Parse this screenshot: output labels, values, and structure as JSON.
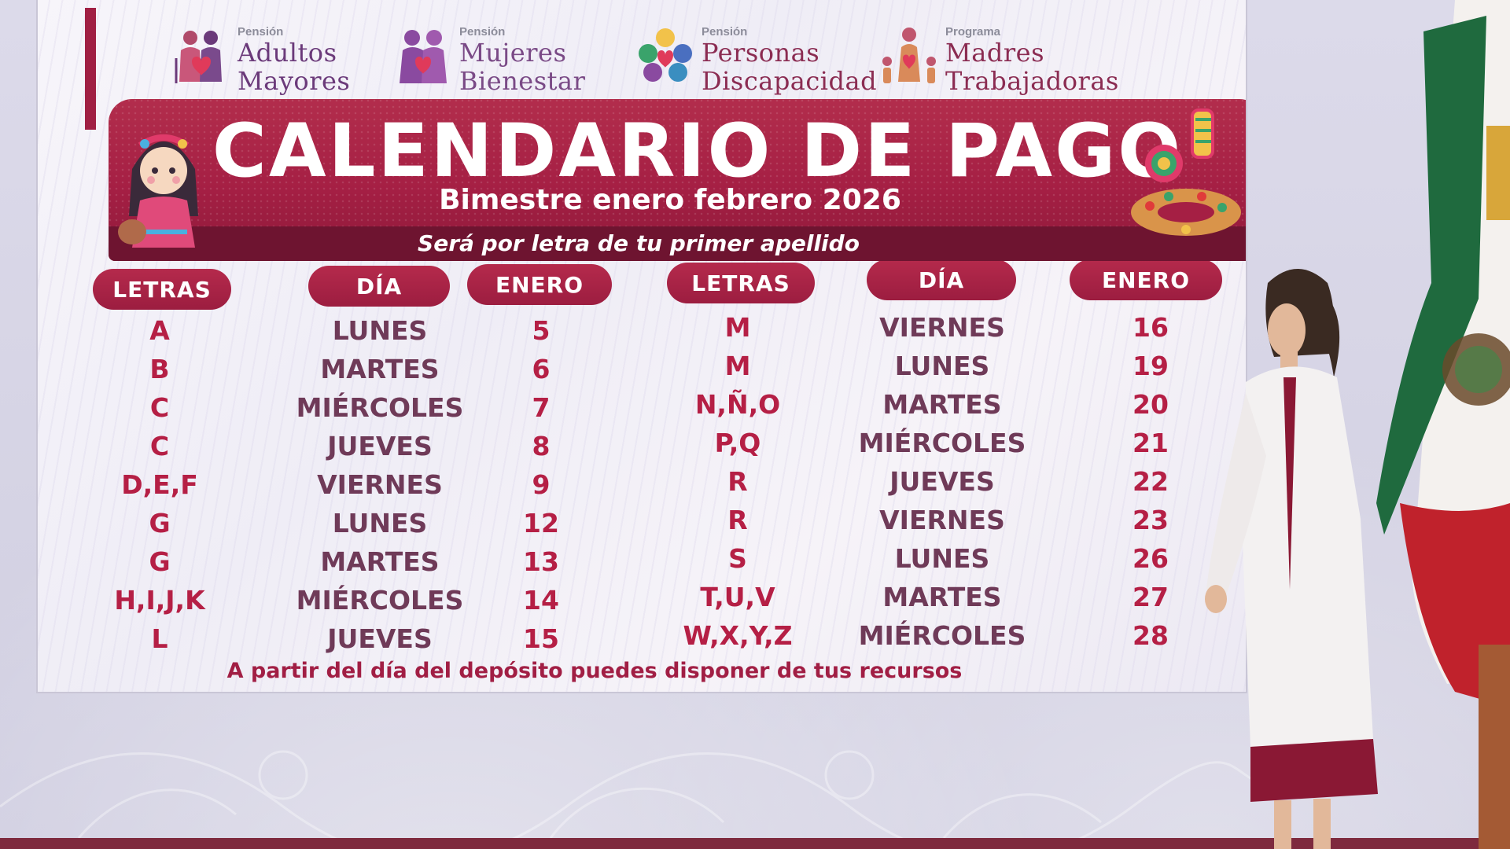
{
  "programs": [
    {
      "small": "Pensión",
      "line1": "Adultos",
      "line2": "Mayores"
    },
    {
      "small": "Pensión",
      "line1": "Mujeres",
      "line2": "Bienestar"
    },
    {
      "small": "Pensión",
      "line1": "Personas",
      "line2": "Discapacidad"
    },
    {
      "small": "Programa",
      "line1": "Madres",
      "line2": "Trabajadoras"
    }
  ],
  "banner": {
    "title": "CALENDARIO DE PAGO",
    "subtitle": "Bimestre enero febrero 2026",
    "note": "Será por letra de tu primer apellido"
  },
  "headers": {
    "left": [
      "LETRAS",
      "DÍA",
      "ENERO"
    ],
    "right": [
      "LETRAS",
      "DÍA",
      "ENERO"
    ]
  },
  "schedule_left": [
    {
      "letters": "A",
      "day": "LUNES",
      "date": "5"
    },
    {
      "letters": "B",
      "day": "MARTES",
      "date": "6"
    },
    {
      "letters": "C",
      "day": "MIÉRCOLES",
      "date": "7"
    },
    {
      "letters": "C",
      "day": "JUEVES",
      "date": "8"
    },
    {
      "letters": "D,E,F",
      "day": "VIERNES",
      "date": "9"
    },
    {
      "letters": "G",
      "day": "LUNES",
      "date": "12"
    },
    {
      "letters": "G",
      "day": "MARTES",
      "date": "13"
    },
    {
      "letters": "H,I,J,K",
      "day": "MIÉRCOLES",
      "date": "14"
    },
    {
      "letters": "L",
      "day": "JUEVES",
      "date": "15"
    }
  ],
  "schedule_right": [
    {
      "letters": "M",
      "day": "VIERNES",
      "date": "16"
    },
    {
      "letters": "M",
      "day": "LUNES",
      "date": "19"
    },
    {
      "letters": "N,Ñ,O",
      "day": "MARTES",
      "date": "20"
    },
    {
      "letters": "P,Q",
      "day": "MIÉRCOLES",
      "date": "21"
    },
    {
      "letters": "R",
      "day": "JUEVES",
      "date": "22"
    },
    {
      "letters": "R",
      "day": "VIERNES",
      "date": "23"
    },
    {
      "letters": "S",
      "day": "LUNES",
      "date": "26"
    },
    {
      "letters": "T,U,V",
      "day": "MARTES",
      "date": "27"
    },
    {
      "letters": "W,X,Y,Z",
      "day": "MIÉRCOLES",
      "date": "28"
    }
  ],
  "footer": "A partir del día del depósito puedes disponer de tus recursos",
  "colors": {
    "accent": "#a51f44",
    "letters": "#b51f45",
    "days": "#6f3a58",
    "background": "#d9d8e6"
  },
  "icons": [
    "elderly-couple-icon",
    "women-icon",
    "disability-icon",
    "mother-children-icon",
    "doll-icon",
    "rosca-de-reyes-icon",
    "mexican-flag-icon"
  ]
}
